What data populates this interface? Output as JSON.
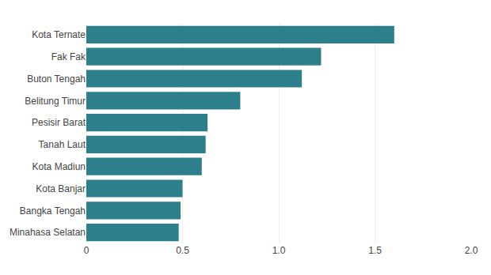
{
  "chart_data": {
    "type": "bar",
    "orientation": "horizontal",
    "categories": [
      "Minahasa Selatan",
      "Bangka Tengah",
      "Kota Banjar",
      "Kota Madiun",
      "Tanah Laut",
      "Pesisir Barat",
      "Belitung Timur",
      "Buton Tengah",
      "Fak Fak",
      "Kota Ternate"
    ],
    "values": [
      0.48,
      0.49,
      0.5,
      0.6,
      0.62,
      0.63,
      0.8,
      1.12,
      1.22,
      1.6
    ],
    "color": "#2e7f8c",
    "xlim": [
      0,
      2.0
    ],
    "xticks": [
      0,
      0.5,
      {
        "value": 1.0,
        "label": "1.0"
      },
      1.5,
      {
        "value": 2.0,
        "label": "2.0"
      }
    ],
    "grid": true
  }
}
